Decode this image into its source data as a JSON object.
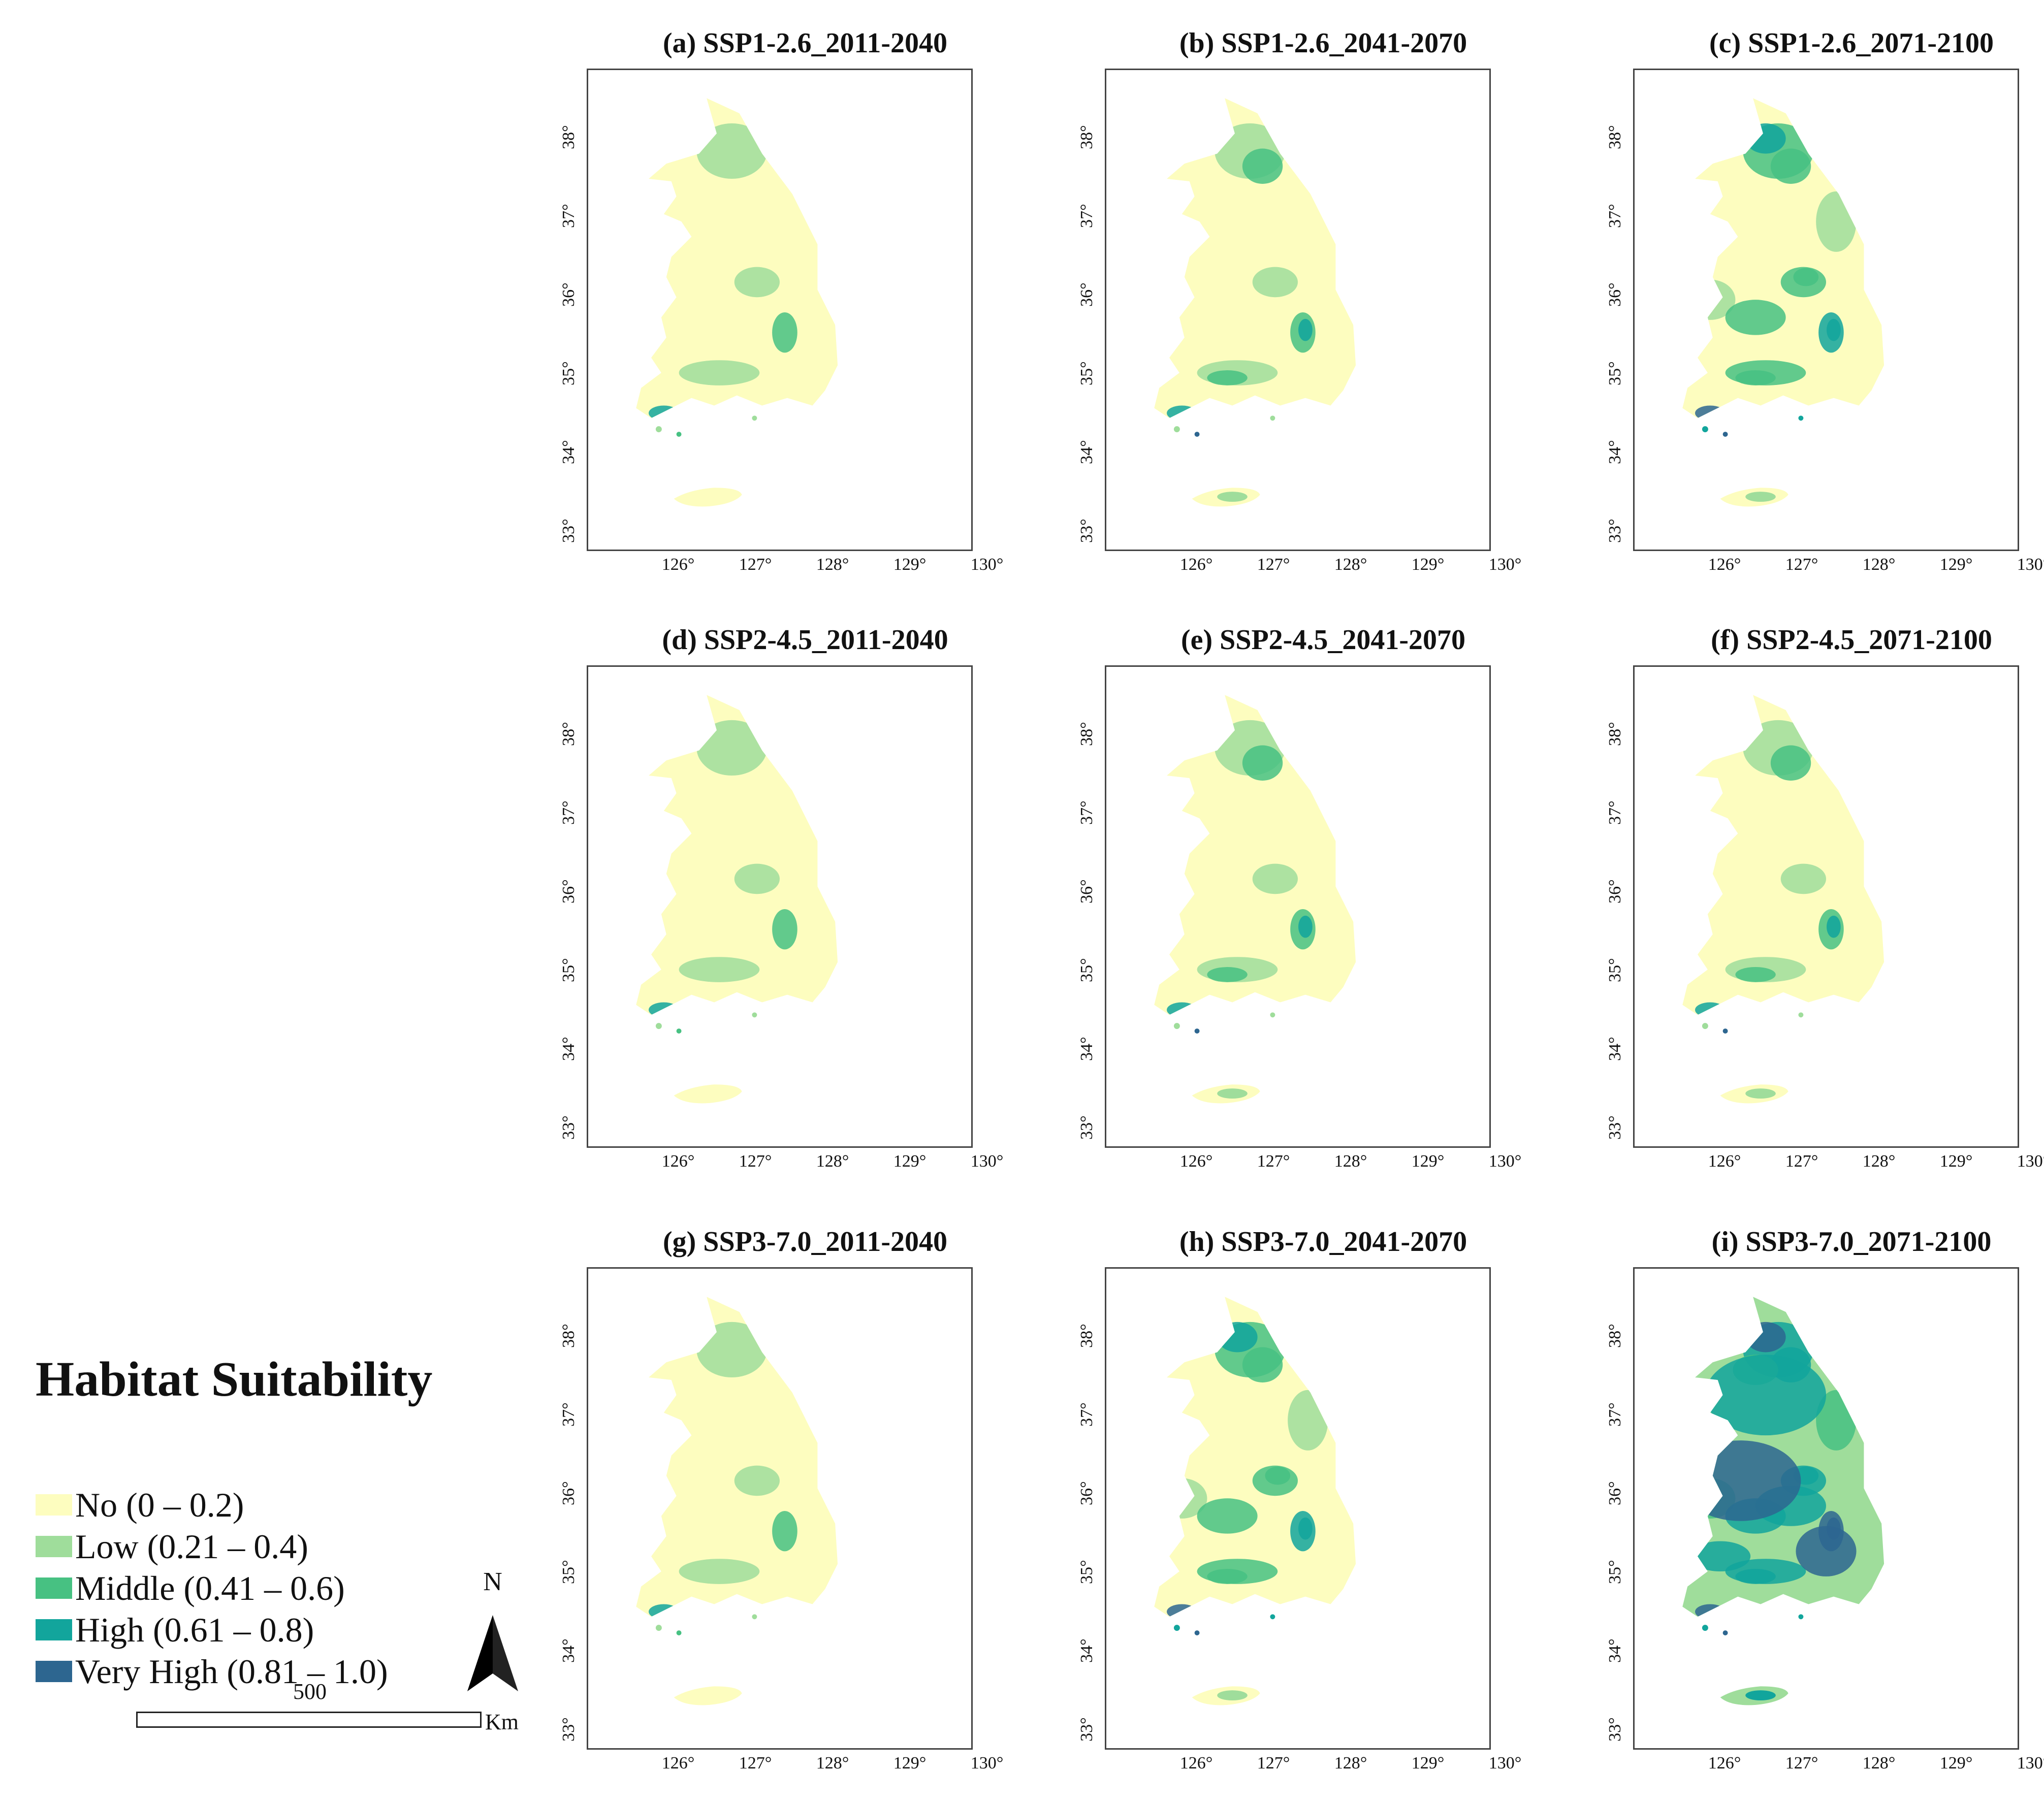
{
  "colors": {
    "no": "#fdfdbf",
    "low": "#9fdd9b",
    "middle": "#47c182",
    "high": "#12a59c",
    "very_high": "#2d6690"
  },
  "axes": {
    "y_ticks": [
      "38°",
      "37°",
      "36°",
      "35°",
      "34°",
      "33°"
    ],
    "x_ticks": [
      "126°",
      "127°",
      "128°",
      "129°",
      "130°"
    ]
  },
  "panels": [
    {
      "title": "(a) SSP1-2.6_2011-2040",
      "suitability_level": 1
    },
    {
      "title": "(b) SSP1-2.6_2041-2070",
      "suitability_level": 2
    },
    {
      "title": "(c) SSP1-2.6_2071-2100",
      "suitability_level": 3
    },
    {
      "title": "(d) SSP2-4.5_2011-2040",
      "suitability_level": 1
    },
    {
      "title": "(e) SSP2-4.5_2041-2070",
      "suitability_level": 2
    },
    {
      "title": "(f) SSP2-4.5_2071-2100",
      "suitability_level": 2
    },
    {
      "title": "(g) SSP3-7.0_2011-2040",
      "suitability_level": 1
    },
    {
      "title": "(h) SSP3-7.0_2041-2070",
      "suitability_level": 3
    },
    {
      "title": "(i) SSP3-7.0_2071-2100",
      "suitability_level": 5
    }
  ],
  "legend": {
    "title": "Habitat Suitability",
    "items": [
      {
        "label": "No (0 – 0.2)",
        "color": "#fdfdbf"
      },
      {
        "label": "Low (0.21 – 0.4)",
        "color": "#9fdd9b"
      },
      {
        "label": "Middle (0.41 – 0.6)",
        "color": "#47c182"
      },
      {
        "label": "High (0.61 – 0.8)",
        "color": "#12a59c"
      },
      {
        "label": "Very High (0.81 – 1.0)",
        "color": "#2d6690"
      }
    ]
  },
  "north_arrow": {
    "label": "N"
  },
  "scale_bar": {
    "value": "500",
    "unit": "Km"
  }
}
